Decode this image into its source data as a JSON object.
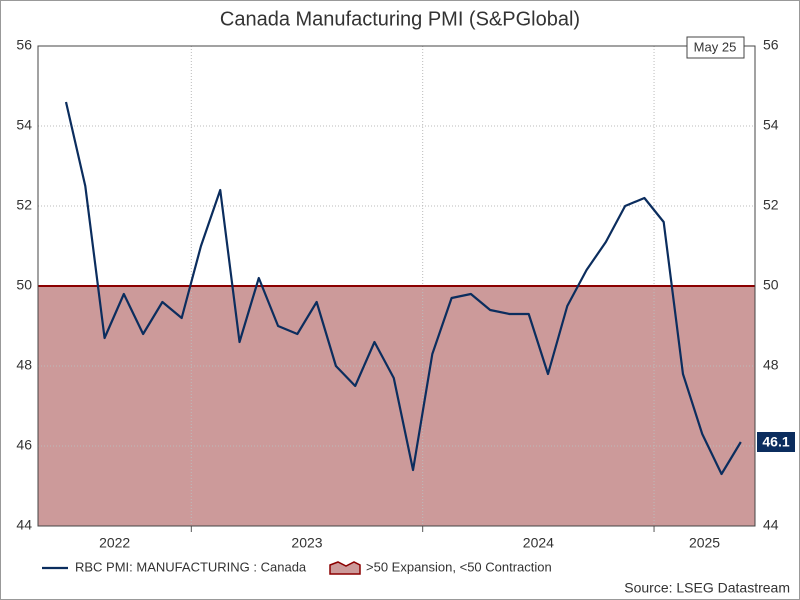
{
  "chart_data": {
    "type": "line",
    "title": "Canada Manufacturing PMI (S&PGlobal)",
    "date_label": "May 25",
    "year_labels": [
      "2022",
      "2023",
      "2024",
      "2025"
    ],
    "series": [
      {
        "name": "RBC PMI: MANUFACTURING : Canada",
        "color": "#0b2d5e",
        "values": [
          54.6,
          52.5,
          48.7,
          49.8,
          48.8,
          49.6,
          49.2,
          51.0,
          52.4,
          48.6,
          50.2,
          49.0,
          48.8,
          49.6,
          48.0,
          47.5,
          48.6,
          47.7,
          45.4,
          48.3,
          49.7,
          49.8,
          49.4,
          49.3,
          49.3,
          47.8,
          49.5,
          50.4,
          51.1,
          52.0,
          52.2,
          51.6,
          47.8,
          46.3,
          45.3,
          46.1
        ]
      }
    ],
    "threshold": {
      "name": ">50 Expansion, <50 Contraction",
      "value": 50,
      "color": "#8b0000",
      "fill": "#cc9a9a"
    },
    "ylim": [
      44,
      56
    ],
    "yticks": [
      44,
      46,
      48,
      50,
      52,
      54,
      56
    ],
    "source": "Source: LSEG Datastream"
  }
}
